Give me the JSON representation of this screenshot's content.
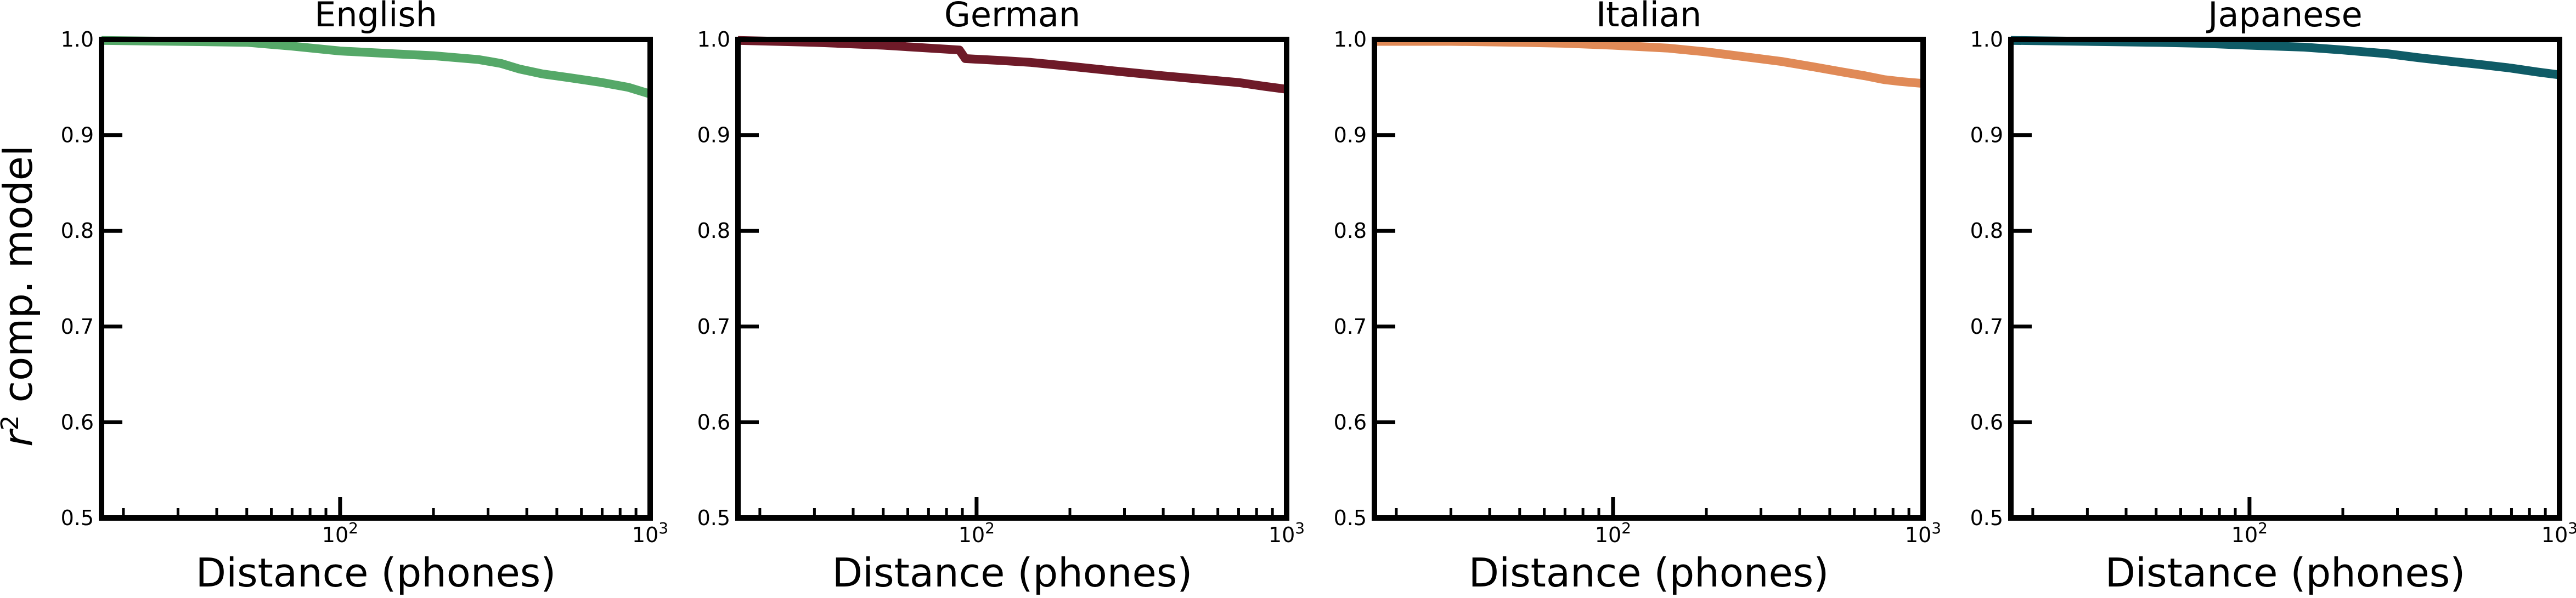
{
  "figure": {
    "ylabel_main": "r",
    "ylabel_sup": "2",
    "ylabel_rest": " comp. model"
  },
  "chart_data": [
    {
      "type": "line",
      "title": "English",
      "xlabel": "Distance (phones)",
      "ylabel": "r² comp. model",
      "xscale": "log",
      "xlim": [
        17,
        1000
      ],
      "ylim": [
        0.5,
        1.0
      ],
      "yticks": [
        0.5,
        0.6,
        0.7,
        0.8,
        0.9,
        1.0
      ],
      "ytick_labels": [
        "0.5",
        "0.6",
        "0.7",
        "0.8",
        "0.9",
        "1.0"
      ],
      "xticks": [
        100,
        1000
      ],
      "xtick_labels": [
        {
          "base": "10",
          "exp": "2"
        },
        {
          "base": "10",
          "exp": "3"
        }
      ],
      "grid": false,
      "color": "#55a868",
      "x": [
        17,
        30,
        50,
        70,
        100,
        150,
        200,
        280,
        330,
        380,
        450,
        550,
        700,
        850,
        1000
      ],
      "y": [
        0.999,
        0.998,
        0.997,
        0.993,
        0.988,
        0.985,
        0.983,
        0.979,
        0.975,
        0.969,
        0.964,
        0.96,
        0.955,
        0.95,
        0.943
      ]
    },
    {
      "type": "line",
      "title": "German",
      "xlabel": "Distance (phones)",
      "ylabel": "",
      "xscale": "log",
      "xlim": [
        17,
        1000
      ],
      "ylim": [
        0.5,
        1.0
      ],
      "yticks": [
        0.5,
        0.6,
        0.7,
        0.8,
        0.9,
        1.0
      ],
      "ytick_labels": [
        "0.5",
        "0.6",
        "0.7",
        "0.8",
        "0.9",
        "1.0"
      ],
      "xticks": [
        100,
        1000
      ],
      "xtick_labels": [
        {
          "base": "10",
          "exp": "2"
        },
        {
          "base": "10",
          "exp": "3"
        }
      ],
      "grid": false,
      "color": "#6e1a28",
      "x": [
        17,
        30,
        50,
        70,
        88,
        92,
        120,
        150,
        200,
        280,
        400,
        550,
        700,
        850,
        1000
      ],
      "y": [
        0.999,
        0.997,
        0.994,
        0.991,
        0.989,
        0.98,
        0.978,
        0.976,
        0.972,
        0.967,
        0.962,
        0.958,
        0.955,
        0.951,
        0.948
      ]
    },
    {
      "type": "line",
      "title": "Italian",
      "xlabel": "Distance (phones)",
      "ylabel": "",
      "xscale": "log",
      "xlim": [
        17,
        1000
      ],
      "ylim": [
        0.5,
        1.0
      ],
      "yticks": [
        0.5,
        0.6,
        0.7,
        0.8,
        0.9,
        1.0
      ],
      "ytick_labels": [
        "0.5",
        "0.6",
        "0.7",
        "0.8",
        "0.9",
        "1.0"
      ],
      "xticks": [
        100,
        1000
      ],
      "xtick_labels": [
        {
          "base": "10",
          "exp": "2"
        },
        {
          "base": "10",
          "exp": "3"
        }
      ],
      "grid": false,
      "color": "#e08a57",
      "x": [
        17,
        30,
        50,
        70,
        100,
        150,
        200,
        280,
        350,
        450,
        550,
        650,
        750,
        850,
        1000
      ],
      "y": [
        0.998,
        0.998,
        0.997,
        0.996,
        0.994,
        0.991,
        0.987,
        0.981,
        0.977,
        0.971,
        0.966,
        0.962,
        0.958,
        0.956,
        0.954
      ]
    },
    {
      "type": "line",
      "title": "Japanese",
      "xlabel": "Distance (phones)",
      "ylabel": "",
      "xscale": "log",
      "xlim": [
        17,
        1000
      ],
      "ylim": [
        0.5,
        1.0
      ],
      "yticks": [
        0.5,
        0.6,
        0.7,
        0.8,
        0.9,
        1.0
      ],
      "ytick_labels": [
        "0.5",
        "0.6",
        "0.7",
        "0.8",
        "0.9",
        "1.0"
      ],
      "xticks": [
        100,
        1000
      ],
      "xtick_labels": [
        {
          "base": "10",
          "exp": "2"
        },
        {
          "base": "10",
          "exp": "3"
        }
      ],
      "grid": false,
      "color": "#0f5b66",
      "x": [
        17,
        30,
        50,
        70,
        100,
        150,
        200,
        280,
        350,
        450,
        550,
        700,
        850,
        1000
      ],
      "y": [
        0.999,
        0.998,
        0.997,
        0.996,
        0.994,
        0.992,
        0.989,
        0.985,
        0.981,
        0.977,
        0.974,
        0.97,
        0.966,
        0.963
      ]
    }
  ]
}
